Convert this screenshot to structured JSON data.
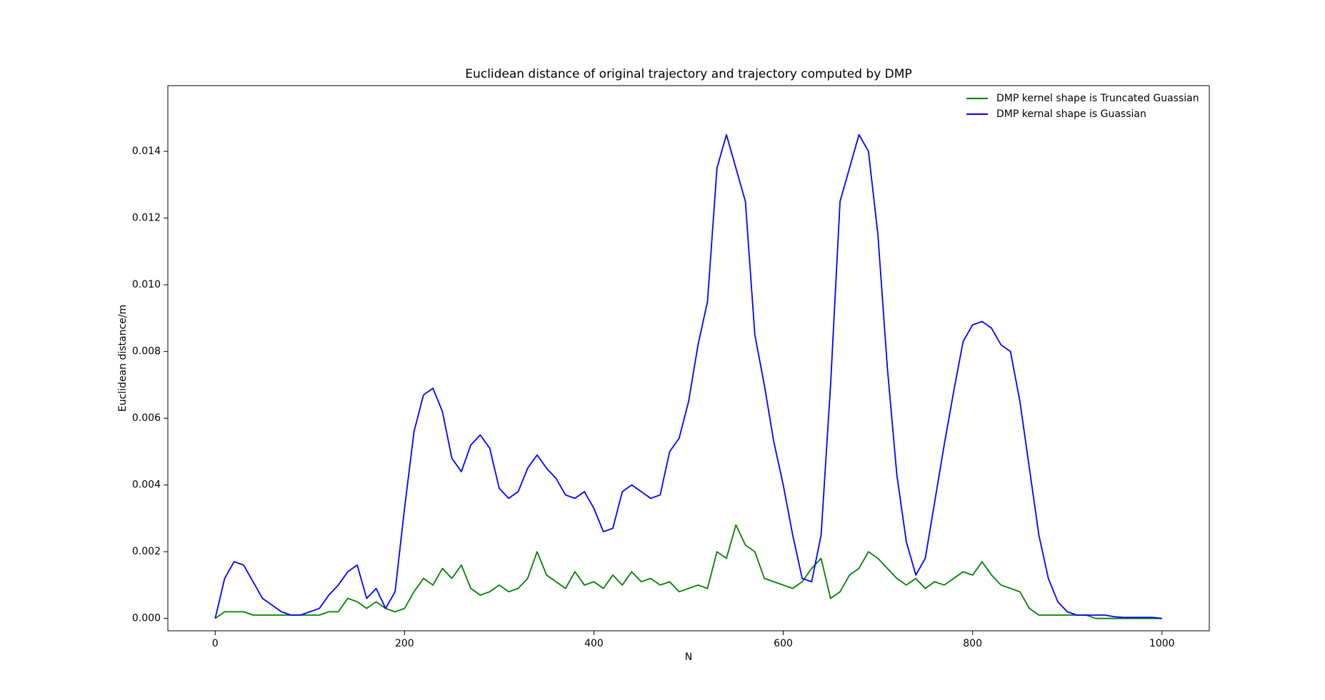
{
  "chart_data": {
    "type": "line",
    "title": "Euclidean distance of original trajectory and trajectory computed by DMP",
    "xlabel": "N",
    "ylabel": "Euclidean distance/m",
    "x": [
      0,
      10,
      20,
      30,
      40,
      50,
      60,
      70,
      80,
      90,
      100,
      110,
      120,
      130,
      140,
      150,
      160,
      170,
      180,
      190,
      200,
      210,
      220,
      230,
      240,
      250,
      260,
      270,
      280,
      290,
      300,
      310,
      320,
      330,
      340,
      350,
      360,
      370,
      380,
      390,
      400,
      410,
      420,
      430,
      440,
      450,
      460,
      470,
      480,
      490,
      500,
      510,
      520,
      530,
      540,
      550,
      560,
      570,
      580,
      590,
      600,
      610,
      620,
      630,
      640,
      650,
      660,
      670,
      680,
      690,
      700,
      710,
      720,
      730,
      740,
      750,
      760,
      770,
      780,
      790,
      800,
      810,
      820,
      830,
      840,
      850,
      860,
      870,
      880,
      890,
      900,
      910,
      920,
      930,
      940,
      950,
      960,
      970,
      980,
      990,
      1000
    ],
    "series": [
      {
        "name": "DMP kernel shape is Truncated Guassian",
        "color": "#008000",
        "values": [
          0,
          0.0002,
          0.0002,
          0.0002,
          0.0001,
          0.0001,
          0.0001,
          0.0001,
          0.0001,
          0.0001,
          0.0001,
          0.0001,
          0.0002,
          0.0002,
          0.0006,
          0.0005,
          0.0003,
          0.0005,
          0.0003,
          0.0002,
          0.0003,
          0.0008,
          0.0012,
          0.001,
          0.0015,
          0.0012,
          0.0016,
          0.0009,
          0.0007,
          0.0008,
          0.001,
          0.0008,
          0.0009,
          0.0012,
          0.002,
          0.0013,
          0.0011,
          0.0009,
          0.0014,
          0.001,
          0.0011,
          0.0009,
          0.0013,
          0.001,
          0.0014,
          0.0011,
          0.0012,
          0.001,
          0.0011,
          0.0008,
          0.0009,
          0.001,
          0.0009,
          0.002,
          0.0018,
          0.0028,
          0.0022,
          0.002,
          0.0012,
          0.0011,
          0.001,
          0.0009,
          0.0011,
          0.0015,
          0.0018,
          0.0006,
          0.0008,
          0.0013,
          0.0015,
          0.002,
          0.0018,
          0.0015,
          0.0012,
          0.001,
          0.0012,
          0.0009,
          0.0011,
          0.001,
          0.0012,
          0.0014,
          0.0013,
          0.0017,
          0.0013,
          0.001,
          0.0009,
          0.0008,
          0.0003,
          0.0001,
          0.0001,
          0.0001,
          0.0001,
          0.0001,
          0.0001,
          0,
          0,
          0,
          0,
          0,
          0,
          0,
          0
        ]
      },
      {
        "name": "DMP kernal shape is Guassian",
        "color": "#0000ff",
        "values": [
          0,
          0.0012,
          0.0017,
          0.0016,
          0.0011,
          0.0006,
          0.0004,
          0.0002,
          0.0001,
          0.0001,
          0.0002,
          0.0003,
          0.0007,
          0.001,
          0.0014,
          0.0016,
          0.0006,
          0.0009,
          0.0003,
          0.0008,
          0.0033,
          0.0056,
          0.0067,
          0.0069,
          0.0062,
          0.0048,
          0.0044,
          0.0052,
          0.0055,
          0.0051,
          0.0039,
          0.0036,
          0.0038,
          0.0045,
          0.0049,
          0.0045,
          0.0042,
          0.0037,
          0.0036,
          0.0038,
          0.0033,
          0.0026,
          0.0027,
          0.0038,
          0.004,
          0.0038,
          0.0036,
          0.0037,
          0.005,
          0.0054,
          0.0065,
          0.0082,
          0.0095,
          0.0135,
          0.0145,
          0.0135,
          0.0125,
          0.0085,
          0.007,
          0.0053,
          0.004,
          0.0025,
          0.0012,
          0.0011,
          0.0025,
          0.007,
          0.0125,
          0.0135,
          0.0145,
          0.014,
          0.0115,
          0.0075,
          0.0043,
          0.0023,
          0.0013,
          0.0018,
          0.0035,
          0.0052,
          0.0068,
          0.0083,
          0.0088,
          0.0089,
          0.0087,
          0.0082,
          0.008,
          0.0065,
          0.0045,
          0.0025,
          0.0012,
          0.0005,
          0.0002,
          0.0001,
          0.0001,
          0.0001,
          0.0001,
          5e-05,
          3e-05,
          3e-05,
          3e-05,
          3e-05,
          0
        ]
      }
    ],
    "xlim": [
      -50,
      1050
    ],
    "xticks": [
      0,
      200,
      400,
      600,
      800,
      1000
    ],
    "ylim": [
      -0.00037,
      0.01597
    ],
    "yticks": [
      {
        "value": 0,
        "label": "0.000"
      },
      {
        "value": 0.002,
        "label": "0.002"
      },
      {
        "value": 0.004,
        "label": "0.004"
      },
      {
        "value": 0.006,
        "label": "0.006"
      },
      {
        "value": 0.008,
        "label": "0.008"
      },
      {
        "value": 0.01,
        "label": "0.010"
      },
      {
        "value": 0.012,
        "label": "0.012"
      },
      {
        "value": 0.014,
        "label": "0.014"
      }
    ],
    "legend": "upper right",
    "grid": false
  }
}
